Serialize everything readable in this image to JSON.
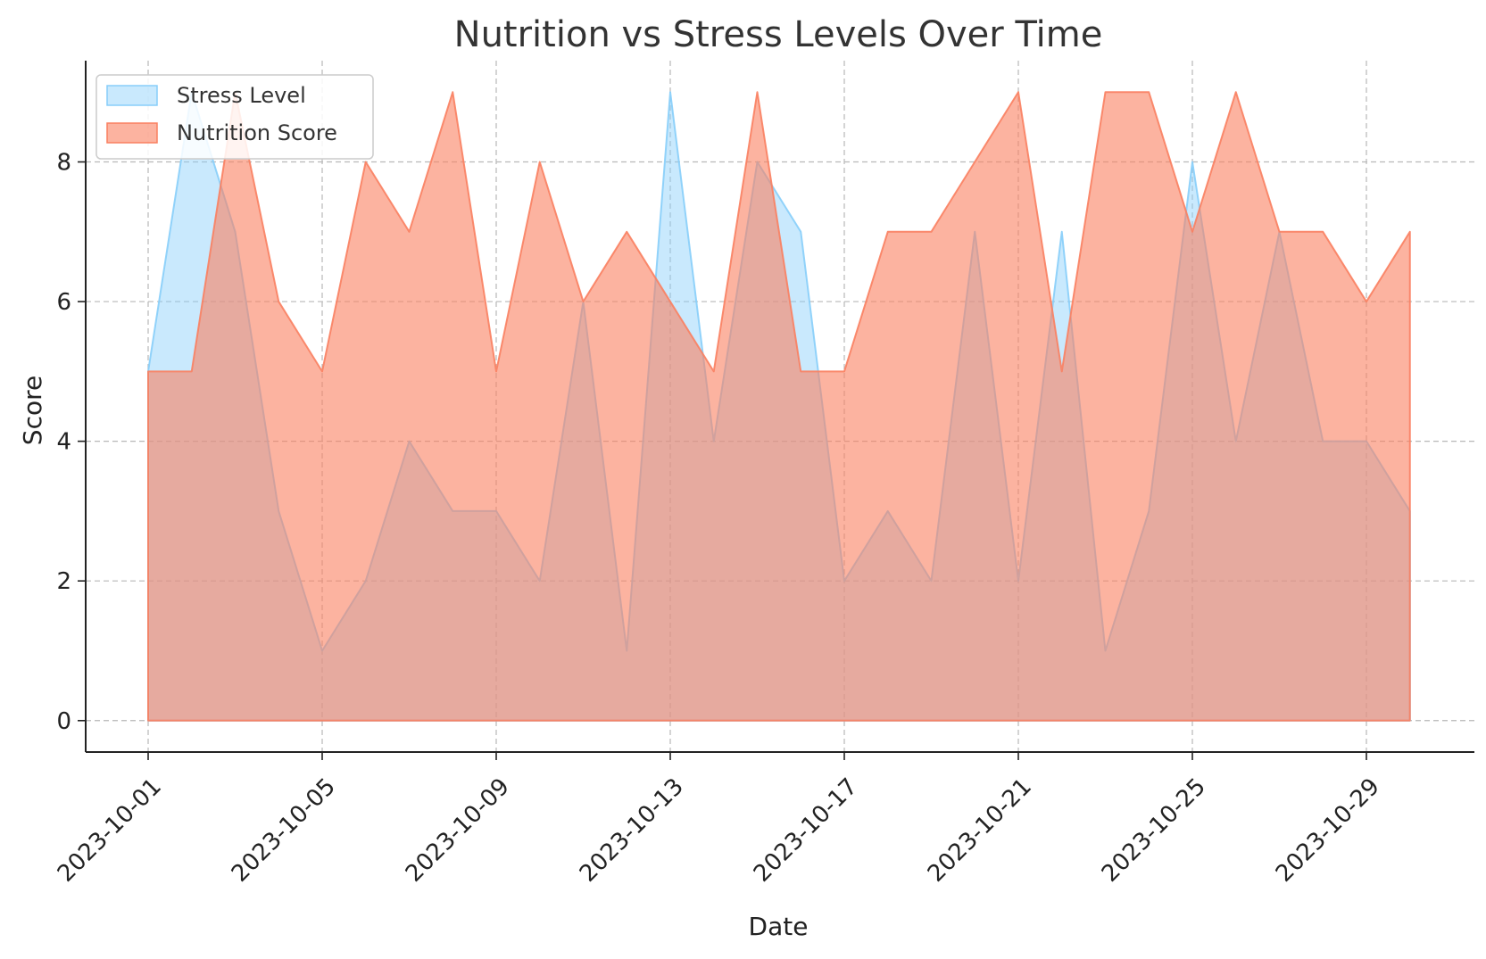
{
  "chart_data": {
    "type": "area",
    "title": "Nutrition vs Stress Levels Over Time",
    "xlabel": "Date",
    "ylabel": "Score",
    "x": [
      "2023-10-01",
      "2023-10-02",
      "2023-10-03",
      "2023-10-04",
      "2023-10-05",
      "2023-10-06",
      "2023-10-07",
      "2023-10-08",
      "2023-10-09",
      "2023-10-10",
      "2023-10-11",
      "2023-10-12",
      "2023-10-13",
      "2023-10-14",
      "2023-10-15",
      "2023-10-16",
      "2023-10-17",
      "2023-10-18",
      "2023-10-19",
      "2023-10-20",
      "2023-10-21",
      "2023-10-22",
      "2023-10-23",
      "2023-10-24",
      "2023-10-25",
      "2023-10-26",
      "2023-10-27",
      "2023-10-28",
      "2023-10-29",
      "2023-10-30"
    ],
    "xticks": [
      "2023-10-01",
      "2023-10-05",
      "2023-10-09",
      "2023-10-13",
      "2023-10-17",
      "2023-10-21",
      "2023-10-25",
      "2023-10-29"
    ],
    "yticks": [
      0,
      2,
      4,
      6,
      8
    ],
    "ylim": [
      -0.45,
      9.45
    ],
    "grid": true,
    "legend_position": "top-left",
    "series": [
      {
        "name": "Stress Level",
        "color": "#87CEFA",
        "values": [
          5,
          9,
          7,
          3,
          1,
          2,
          4,
          3,
          3,
          2,
          6,
          1,
          9,
          4,
          8,
          7,
          2,
          3,
          2,
          7,
          2,
          7,
          1,
          3,
          8,
          4,
          7,
          4,
          4,
          3
        ]
      },
      {
        "name": "Nutrition Score",
        "color": "#FA8060",
        "values": [
          5,
          5,
          9,
          6,
          5,
          8,
          7,
          9,
          5,
          8,
          6,
          7,
          6,
          5,
          9,
          5,
          5,
          7,
          7,
          8,
          9,
          5,
          9,
          9,
          7,
          9,
          7,
          7,
          6,
          7
        ]
      }
    ]
  }
}
